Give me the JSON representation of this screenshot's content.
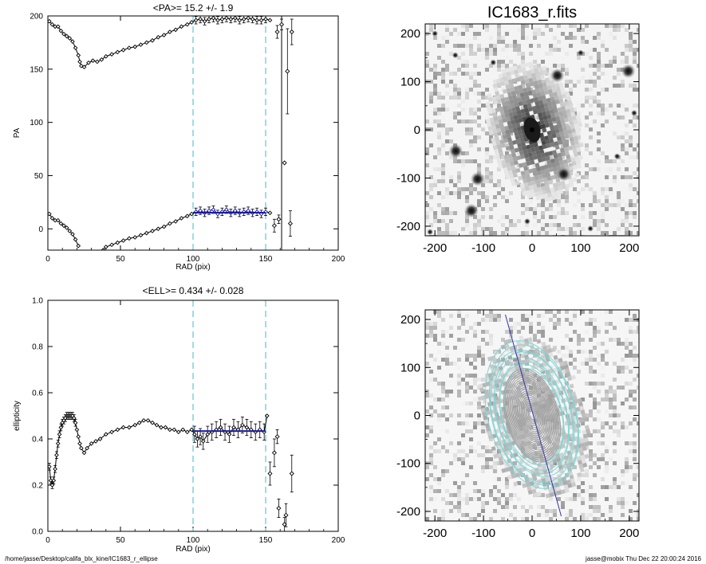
{
  "chart_data": [
    {
      "type": "scatter",
      "title": "<PA>=  15.2 +/-   1.9",
      "xlabel": "RAD (pix)",
      "ylabel": "PA",
      "xlim": [
        0,
        200
      ],
      "ylim": [
        -20,
        200
      ],
      "xticks": [
        0,
        50,
        100,
        150,
        200
      ],
      "yticks": [
        0,
        50,
        100,
        150,
        200
      ],
      "vlines_dashed": [
        100,
        150
      ],
      "vline_solid": 161,
      "fit_value": 15.2,
      "fit_range": [
        100,
        150
      ],
      "upper_branch": [
        [
          1,
          195
        ],
        [
          3,
          192
        ],
        [
          5,
          190
        ],
        [
          7,
          190
        ],
        [
          9,
          186
        ],
        [
          11,
          183
        ],
        [
          13,
          181
        ],
        [
          15,
          179
        ],
        [
          17,
          176
        ],
        [
          19,
          170
        ],
        [
          21,
          163
        ],
        [
          22,
          157
        ],
        [
          23,
          153
        ],
        [
          25,
          152
        ],
        [
          28,
          156
        ],
        [
          31,
          158
        ],
        [
          34,
          157
        ],
        [
          37,
          159
        ],
        [
          40,
          162
        ],
        [
          44,
          164
        ],
        [
          48,
          166
        ],
        [
          52,
          168
        ],
        [
          56,
          170
        ],
        [
          60,
          171
        ],
        [
          64,
          173
        ],
        [
          68,
          175
        ],
        [
          72,
          177
        ],
        [
          76,
          180
        ],
        [
          80,
          182
        ],
        [
          84,
          185
        ],
        [
          88,
          187
        ],
        [
          92,
          190
        ],
        [
          96,
          192
        ],
        [
          99,
          194
        ],
        [
          102,
          196
        ],
        [
          105,
          197
        ],
        [
          108,
          195
        ],
        [
          111,
          197
        ],
        [
          114,
          198
        ],
        [
          117,
          196
        ],
        [
          120,
          197
        ],
        [
          123,
          198
        ],
        [
          126,
          197
        ],
        [
          129,
          198
        ],
        [
          132,
          196
        ],
        [
          135,
          197
        ],
        [
          138,
          198
        ],
        [
          141,
          197
        ],
        [
          144,
          196
        ],
        [
          147,
          196
        ],
        [
          150,
          197
        ],
        [
          153,
          196
        ]
      ],
      "lower_branch": [
        [
          1,
          14
        ],
        [
          3,
          10
        ],
        [
          5,
          8
        ],
        [
          7,
          8
        ],
        [
          9,
          5
        ],
        [
          11,
          3
        ],
        [
          13,
          1
        ],
        [
          15,
          -2
        ],
        [
          17,
          -5
        ],
        [
          19,
          -10
        ],
        [
          21,
          -16
        ],
        [
          38,
          -20
        ],
        [
          40,
          -17
        ],
        [
          44,
          -15
        ],
        [
          48,
          -13
        ],
        [
          52,
          -11
        ],
        [
          56,
          -9
        ],
        [
          60,
          -8
        ],
        [
          64,
          -6
        ],
        [
          68,
          -4
        ],
        [
          72,
          -2
        ],
        [
          76,
          0
        ],
        [
          80,
          2
        ],
        [
          84,
          5
        ],
        [
          88,
          7
        ],
        [
          92,
          10
        ],
        [
          96,
          12
        ],
        [
          99,
          14
        ],
        [
          102,
          16
        ],
        [
          105,
          17
        ],
        [
          108,
          15
        ],
        [
          111,
          17
        ],
        [
          114,
          18
        ],
        [
          117,
          14
        ],
        [
          120,
          16
        ],
        [
          123,
          18
        ],
        [
          126,
          15
        ],
        [
          129,
          17
        ],
        [
          132,
          15
        ],
        [
          135,
          16
        ],
        [
          138,
          17
        ],
        [
          141,
          15
        ],
        [
          144,
          16
        ],
        [
          147,
          14
        ],
        [
          150,
          16
        ],
        [
          153,
          15
        ]
      ],
      "outer_points": [
        [
          156,
          3,
          6
        ],
        [
          159,
          9,
          4
        ],
        [
          163,
          62,
          0
        ],
        [
          165,
          148,
          40
        ],
        [
          167,
          5,
          12
        ],
        [
          158,
          185,
          6
        ],
        [
          168,
          185,
          12
        ],
        [
          161,
          192,
          5
        ]
      ]
    },
    {
      "type": "scatter",
      "title": "<ELL>= 0.434 +/-  0.028",
      "xlabel": "RAD (pix)",
      "ylabel": "ellipticity",
      "xlim": [
        0,
        200
      ],
      "ylim": [
        0,
        1
      ],
      "xticks": [
        0,
        50,
        100,
        150,
        200
      ],
      "yticks": [
        "0.0",
        "0.2",
        "0.4",
        "0.6",
        "0.8",
        "1.0"
      ],
      "vlines_dashed": [
        100,
        150
      ],
      "fit_value": 0.434,
      "fit_range": [
        100,
        150
      ],
      "points": [
        [
          1,
          0.28
        ],
        [
          2,
          0.22
        ],
        [
          3,
          0.2
        ],
        [
          4,
          0.22
        ],
        [
          5,
          0.27
        ],
        [
          6,
          0.33
        ],
        [
          7,
          0.38
        ],
        [
          8,
          0.42
        ],
        [
          9,
          0.45
        ],
        [
          10,
          0.47
        ],
        [
          11,
          0.48
        ],
        [
          12,
          0.49
        ],
        [
          13,
          0.5
        ],
        [
          14,
          0.5
        ],
        [
          15,
          0.5
        ],
        [
          16,
          0.5
        ],
        [
          17,
          0.5
        ],
        [
          18,
          0.49
        ],
        [
          19,
          0.47
        ],
        [
          20,
          0.44
        ],
        [
          21,
          0.41
        ],
        [
          22,
          0.38
        ],
        [
          23,
          0.36
        ],
        [
          25,
          0.34
        ],
        [
          27,
          0.36
        ],
        [
          30,
          0.38
        ],
        [
          33,
          0.39
        ],
        [
          36,
          0.4
        ],
        [
          40,
          0.42
        ],
        [
          44,
          0.43
        ],
        [
          48,
          0.44
        ],
        [
          52,
          0.45
        ],
        [
          56,
          0.45
        ],
        [
          60,
          0.46
        ],
        [
          63,
          0.47
        ],
        [
          66,
          0.48
        ],
        [
          69,
          0.48
        ],
        [
          72,
          0.47
        ],
        [
          75,
          0.46
        ],
        [
          78,
          0.45
        ],
        [
          81,
          0.45
        ],
        [
          84,
          0.44
        ],
        [
          87,
          0.44
        ],
        [
          90,
          0.43
        ],
        [
          93,
          0.44
        ],
        [
          96,
          0.43
        ],
        [
          99,
          0.44
        ],
        [
          101,
          0.42
        ],
        [
          103,
          0.4
        ],
        [
          105,
          0.41
        ],
        [
          107,
          0.39
        ],
        [
          110,
          0.42
        ],
        [
          113,
          0.43
        ],
        [
          116,
          0.44
        ],
        [
          119,
          0.45
        ],
        [
          122,
          0.43
        ],
        [
          125,
          0.42
        ],
        [
          128,
          0.45
        ],
        [
          131,
          0.44
        ],
        [
          134,
          0.46
        ],
        [
          137,
          0.45
        ],
        [
          140,
          0.44
        ],
        [
          143,
          0.43
        ],
        [
          146,
          0.44
        ],
        [
          149,
          0.43
        ],
        [
          151,
          0.5
        ]
      ],
      "outer_points": [
        [
          153,
          0.25,
          0.05
        ],
        [
          156,
          0.34,
          0.06
        ],
        [
          158,
          0.41,
          0.03
        ],
        [
          159,
          0.1,
          0.04
        ],
        [
          163,
          0.03,
          0.03
        ],
        [
          164,
          0.07,
          0.05
        ],
        [
          168,
          0.25,
          0.08
        ]
      ]
    },
    {
      "type": "heatmap",
      "title": "IC1683_r.fits",
      "xlim": [
        -220,
        220
      ],
      "ylim": [
        -220,
        220
      ],
      "xticks": [
        "-200",
        "-100",
        "0",
        "100",
        "200"
      ],
      "yticks": [
        "-200",
        "-100",
        "0",
        "100",
        "200"
      ],
      "galaxy_center": [
        0,
        0
      ],
      "galaxy_pa_deg": 15.2,
      "galaxy_ellipticity": 0.434,
      "stars": [
        [
          -157,
          -44
        ],
        [
          -112,
          -102
        ],
        [
          -125,
          -168
        ],
        [
          52,
          113
        ],
        [
          65,
          -92
        ],
        [
          198,
          122
        ],
        [
          -210,
          -212
        ],
        [
          -80,
          140
        ],
        [
          100,
          160
        ],
        [
          -200,
          200
        ],
        [
          -158,
          155
        ],
        [
          210,
          35
        ],
        [
          175,
          -55
        ],
        [
          -10,
          -190
        ],
        [
          120,
          -205
        ]
      ]
    },
    {
      "type": "heatmap",
      "xlim": [
        -220,
        220
      ],
      "ylim": [
        -220,
        220
      ],
      "xticks": [
        "-200",
        "-100",
        "0",
        "100",
        "200"
      ],
      "yticks": [
        "-200",
        "-100",
        "0",
        "100",
        "200"
      ],
      "contour_color_outer": "#7fd6d6",
      "contour_color_inner": "#a0a0a0",
      "axis_line_color": "#3333aa",
      "axis_line": [
        [
          -55,
          210
        ],
        [
          60,
          -210
        ]
      ]
    }
  ],
  "footer": {
    "left": "/home/jasse/Desktop/califa_blx_kine/IC1683_r_ellipse",
    "right": "jasse@mobix  Thu Dec 22 20:00:24 2016"
  },
  "colors": {
    "dashed": "#5ec6d6",
    "fit": "#1a1aa6",
    "points": "#000000"
  }
}
